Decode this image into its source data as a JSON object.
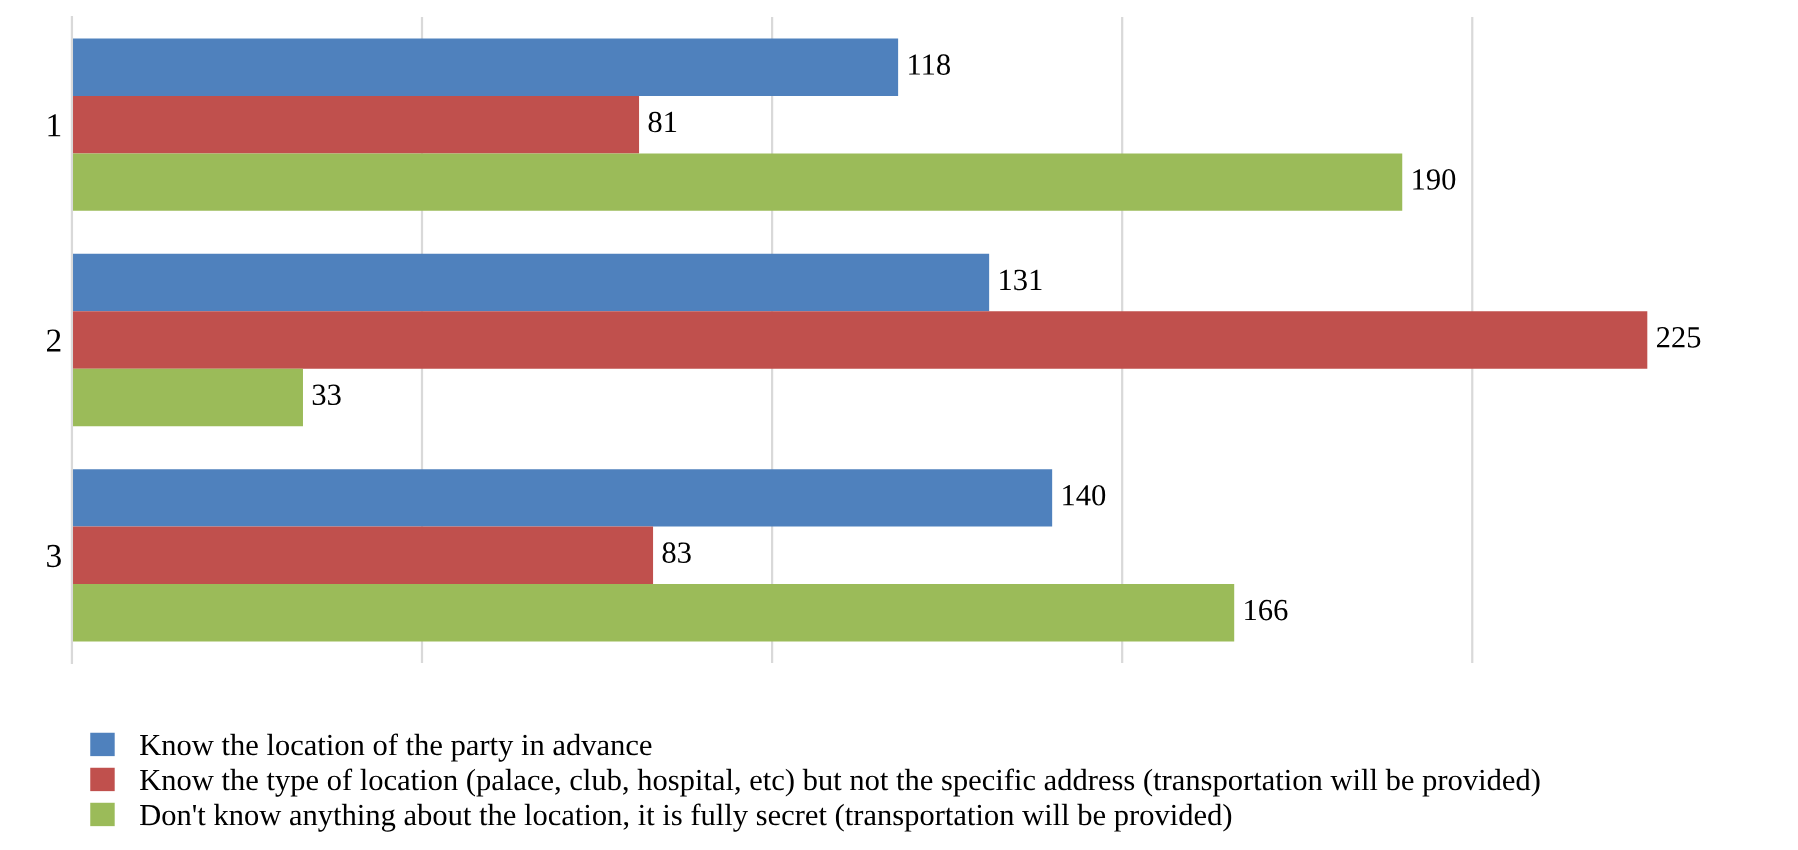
{
  "chart_data": {
    "type": "bar",
    "orientation": "horizontal",
    "categories": [
      "1",
      "2",
      "3"
    ],
    "series": [
      {
        "name": "Know the location of the party in advance",
        "color": "#4f81bd",
        "values": [
          118,
          131,
          140
        ]
      },
      {
        "name": "Know the type of location (palace, club, hospital, etc) but not the specific address (transportation will be provided)",
        "color": "#c0504d",
        "values": [
          81,
          225,
          83
        ]
      },
      {
        "name": "Don't know anything about the location, it is fully secret (transportation will be provided)",
        "color": "#9bbb59",
        "values": [
          190,
          33,
          166
        ]
      }
    ],
    "xticks": [
      {
        "value": 0,
        "label": null
      },
      {
        "value": 50,
        "label": null
      },
      {
        "value": 100,
        "label": null
      },
      {
        "value": 150,
        "label": null
      },
      {
        "value": 200,
        "label": null
      }
    ],
    "grid": "x",
    "tick_labels": "y",
    "data_labels": true,
    "legend": "bottom"
  }
}
